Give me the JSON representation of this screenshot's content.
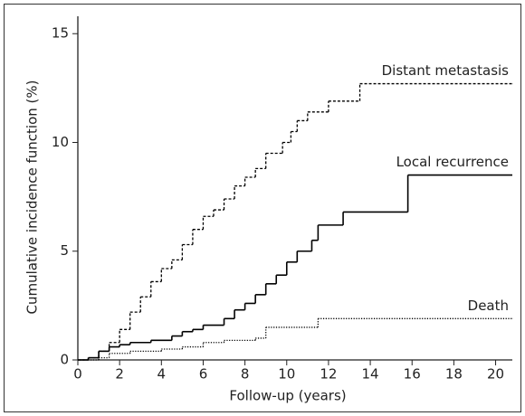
{
  "chart_data": {
    "type": "step-line",
    "xlabel": "Follow-up (years)",
    "ylabel": "Cumulative incidence function (%)",
    "xlim": [
      0,
      20.8
    ],
    "ylim": [
      0,
      15.8
    ],
    "xticks": [
      0,
      2,
      4,
      6,
      8,
      10,
      12,
      14,
      16,
      18,
      20
    ],
    "yticks": [
      0,
      5,
      10,
      15
    ],
    "grid": false,
    "series": [
      {
        "name": "Distant metastasis",
        "color": "#000000",
        "line_style": "dashed",
        "x": [
          0,
          0.5,
          1,
          1.5,
          2,
          2.5,
          3,
          3.5,
          4,
          4.5,
          5,
          5.5,
          6,
          6.5,
          7,
          7.5,
          8,
          8.5,
          9,
          9.8,
          10.2,
          10.5,
          11,
          12,
          13.5,
          20.8
        ],
        "values": [
          0,
          0.1,
          0.4,
          0.8,
          1.4,
          2.2,
          2.9,
          3.6,
          4.2,
          4.6,
          5.3,
          6.0,
          6.6,
          6.9,
          7.4,
          8.0,
          8.4,
          8.8,
          9.5,
          10.0,
          10.5,
          11.0,
          11.4,
          11.9,
          12.7,
          12.7
        ]
      },
      {
        "name": "Local recurrence",
        "color": "#000000",
        "line_style": "solid",
        "x": [
          0,
          0.5,
          1,
          1.5,
          2,
          2.5,
          3.5,
          4.5,
          5,
          5.5,
          6,
          7,
          7.5,
          8,
          8.5,
          9,
          9.5,
          10,
          10.5,
          11.2,
          11.5,
          12.7,
          15.8,
          20.8
        ],
        "values": [
          0,
          0.1,
          0.4,
          0.6,
          0.7,
          0.8,
          0.9,
          1.1,
          1.3,
          1.4,
          1.6,
          1.9,
          2.3,
          2.6,
          3.0,
          3.5,
          3.9,
          4.5,
          5.0,
          5.5,
          6.2,
          6.8,
          8.5,
          8.5
        ]
      },
      {
        "name": "Death",
        "color": "#000000",
        "line_style": "dotted",
        "x": [
          0,
          1,
          1.5,
          2.5,
          4,
          5,
          6,
          7,
          8.5,
          9,
          11.5,
          20.8
        ],
        "values": [
          0,
          0.1,
          0.3,
          0.4,
          0.5,
          0.6,
          0.8,
          0.9,
          1.0,
          1.5,
          1.9,
          1.9
        ]
      }
    ]
  }
}
